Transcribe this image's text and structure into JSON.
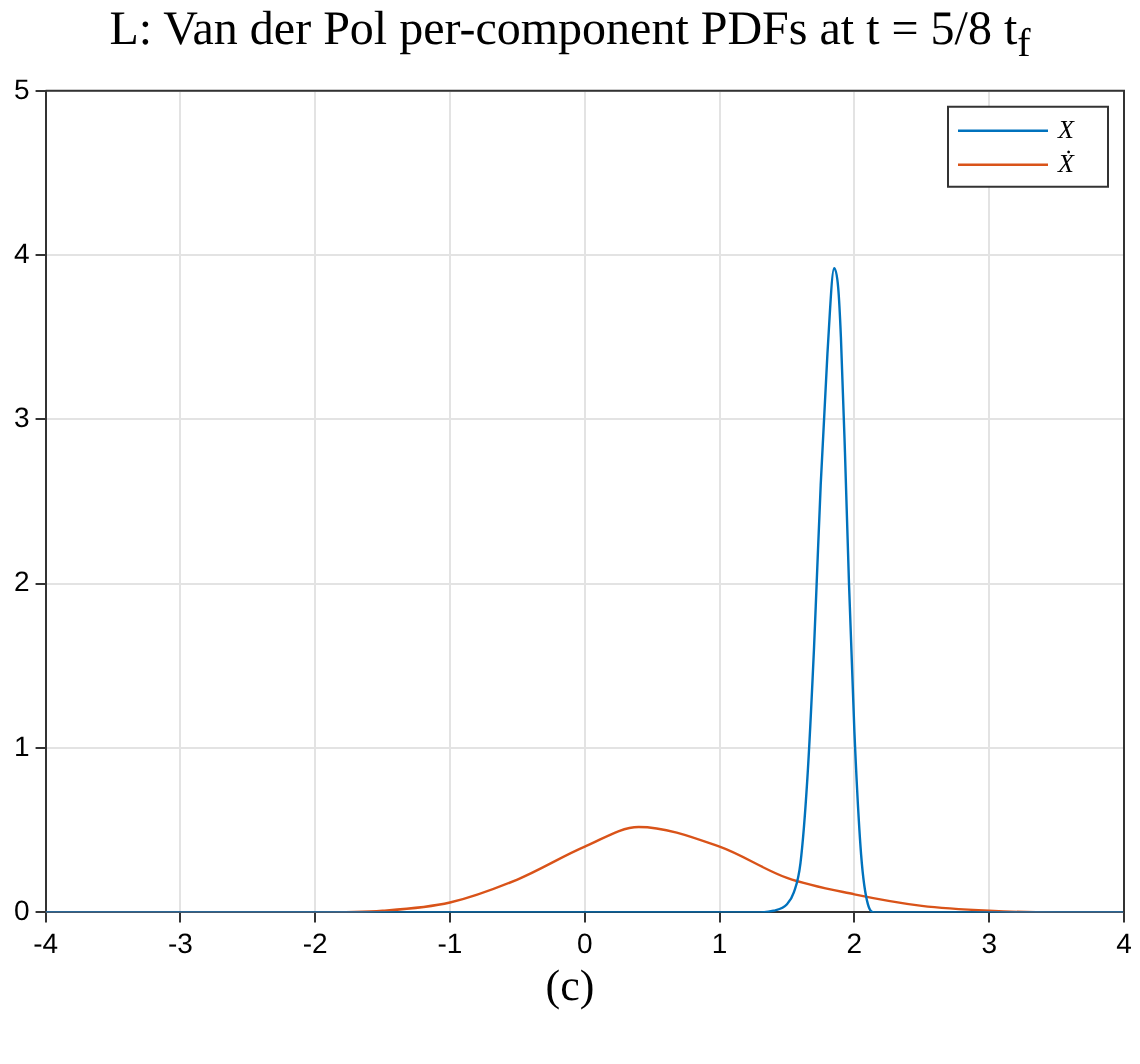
{
  "chart_data": {
    "type": "line",
    "title": "L: Van der Pol per-component PDFs at t = 5/8 t$_{f}$",
    "xlim": [
      -4,
      4
    ],
    "xticks": [
      -4,
      -3,
      -2,
      -1,
      0,
      1,
      2,
      3,
      4
    ],
    "ylim": [
      0,
      5
    ],
    "yticks": [
      0,
      1,
      2,
      3,
      4,
      5
    ],
    "grid": true,
    "legend": "top right",
    "marker": "none",
    "line_style": "solid",
    "annotations": [
      "(c)"
    ],
    "series": [
      {
        "name": "X",
        "color": "#0072bd",
        "x": [
          -4,
          1.3,
          1.4,
          1.5,
          1.55,
          1.6,
          1.65,
          1.7,
          1.72,
          1.75,
          1.8,
          1.85,
          1.88,
          1.9,
          1.93,
          1.96,
          2.0,
          2.05,
          2.1,
          2.15,
          4
        ],
        "values": [
          0,
          0,
          0.01,
          0.05,
          0.12,
          0.3,
          0.8,
          1.6,
          2.0,
          2.6,
          3.4,
          3.92,
          3.8,
          3.5,
          2.8,
          2.0,
          1.1,
          0.35,
          0.05,
          0,
          0
        ]
      },
      {
        "name": "Ẋ",
        "color": "#d95319",
        "x": [
          -4,
          -2,
          -1.5,
          -1,
          -0.5,
          0,
          0.4,
          1,
          1.5,
          2,
          2.5,
          3,
          3.5,
          4
        ],
        "values": [
          0,
          0,
          0.01,
          0.06,
          0.2,
          0.4,
          0.52,
          0.4,
          0.21,
          0.11,
          0.04,
          0.01,
          0,
          0
        ]
      }
    ]
  }
}
